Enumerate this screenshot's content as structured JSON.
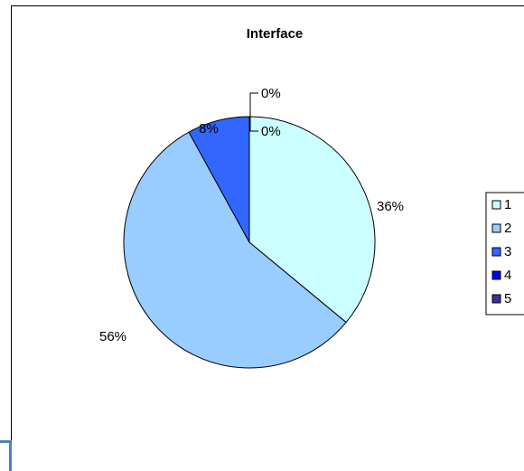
{
  "chart_data": {
    "type": "pie",
    "title": "Interface",
    "categories": [
      "1",
      "2",
      "3",
      "4",
      "5"
    ],
    "values": [
      36,
      56,
      8,
      0,
      0
    ],
    "labels": [
      "36%",
      "56%",
      "8%",
      "0%",
      "0%"
    ],
    "colors": [
      "#ccffff",
      "#99ccff",
      "#3366ff",
      "#0000ff",
      "#333399"
    ],
    "legend_position": "right",
    "start_angle": "12 o'clock",
    "direction": "clockwise"
  }
}
